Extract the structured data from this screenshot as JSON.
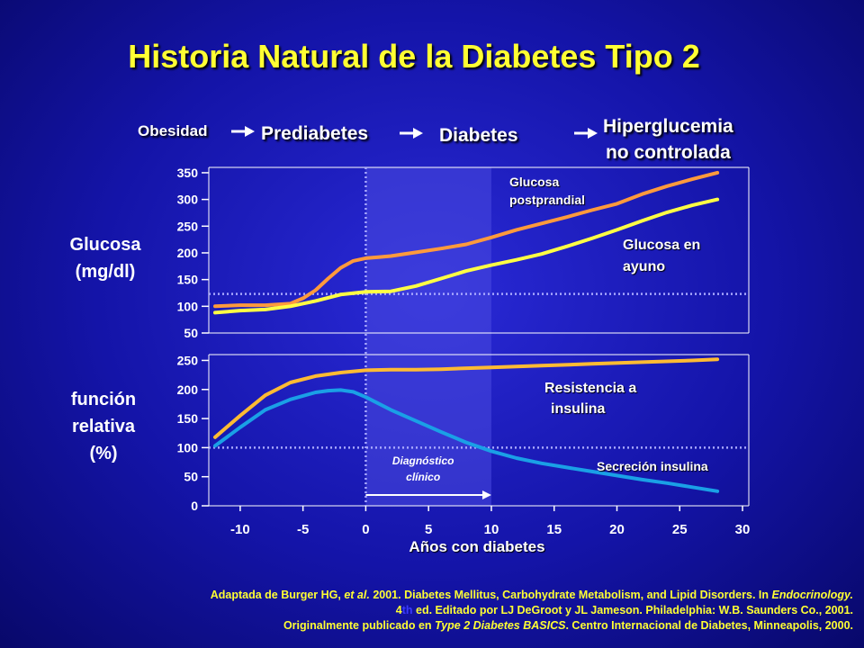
{
  "title": "Historia Natural de la Diabetes Tipo 2",
  "stages": [
    "Obesidad",
    "Prediabetes",
    "Diabetes",
    "Hiperglucemia",
    "no controlada"
  ],
  "colors": {
    "background": "#1414a8",
    "title": "#ffff33",
    "orange_series": "#ff9a3c",
    "yellow_series": "#ffff44",
    "blue_series": "#1aa0e6",
    "reference_line": "#a8a8ff",
    "diagnosis_band": "#4a4ae0"
  },
  "chart_data": [
    {
      "type": "line",
      "ylabel": [
        "Glucosa",
        "(mg/dl)"
      ],
      "xlim": [
        -12.5,
        30.5
      ],
      "ylim": [
        50,
        360
      ],
      "yticks": [
        350,
        300,
        250,
        200,
        150,
        100,
        50
      ],
      "reference_y": 123,
      "series": [
        {
          "name": "Glucosa postprandial",
          "label": [
            "Glucosa",
            "postprandial"
          ],
          "color": "#ff9a3c",
          "x": [
            -12,
            -10,
            -8,
            -6,
            -5,
            -4,
            -3,
            -2,
            -1,
            0,
            1,
            2,
            4,
            6,
            8,
            10,
            12,
            14,
            16,
            18,
            20,
            22,
            24,
            26,
            28
          ],
          "y": [
            100,
            102,
            102,
            105,
            115,
            130,
            152,
            172,
            185,
            190,
            192,
            194,
            201,
            208,
            216,
            229,
            243,
            255,
            267,
            280,
            292,
            310,
            325,
            338,
            350
          ]
        },
        {
          "name": "Glucosa en ayuno",
          "label": [
            "Glucosa en",
            "ayuno"
          ],
          "color": "#ffff44",
          "x": [
            -12,
            -10,
            -8,
            -6,
            -4,
            -2,
            0,
            2,
            4,
            6,
            8,
            10,
            12,
            14,
            16,
            18,
            20,
            22,
            24,
            26,
            28
          ],
          "y": [
            88,
            92,
            94,
            100,
            110,
            122,
            127,
            128,
            138,
            152,
            166,
            177,
            187,
            198,
            212,
            227,
            243,
            260,
            276,
            289,
            300
          ]
        }
      ]
    },
    {
      "type": "line",
      "ylabel": [
        "función",
        "relativa",
        "(%)"
      ],
      "xlabel": "Años con diabetes",
      "xlim": [
        -12.5,
        30.5
      ],
      "ylim": [
        0,
        260
      ],
      "xticks": [
        -10,
        -5,
        0,
        5,
        10,
        15,
        20,
        25,
        30
      ],
      "yticks": [
        250,
        200,
        150,
        100,
        50,
        0
      ],
      "reference_y": 100,
      "series": [
        {
          "name": "Resistencia a insulina",
          "label": [
            "Resistencia a",
            "insulina"
          ],
          "color": "#ffbb33",
          "x": [
            -12,
            -10,
            -8,
            -6,
            -4,
            -2,
            0,
            2,
            4,
            6,
            10,
            14,
            18,
            22,
            26,
            28
          ],
          "y": [
            118,
            155,
            190,
            212,
            223,
            229,
            233,
            234,
            234,
            235,
            238,
            241,
            244,
            247,
            250,
            252
          ]
        },
        {
          "name": "Secreción insulina",
          "label": [
            "Secreción insulina"
          ],
          "color": "#1aa0e6",
          "x": [
            -12,
            -10,
            -8,
            -6,
            -4,
            -3,
            -2,
            -1,
            0,
            2,
            4,
            6,
            8,
            10,
            12,
            14,
            16,
            18,
            20,
            22,
            24,
            26,
            28
          ],
          "y": [
            103,
            135,
            165,
            183,
            195,
            198,
            199,
            196,
            187,
            165,
            146,
            127,
            109,
            94,
            82,
            73,
            66,
            59,
            52,
            45,
            39,
            32,
            25
          ]
        }
      ],
      "annotation": {
        "label": [
          "Diagnóstico",
          "clínico"
        ],
        "x_from": 0,
        "x_to": 10
      }
    }
  ],
  "source": {
    "line1_prefix": "Adaptada de Burger HG, ",
    "line1_em1": "et al.",
    "line1_mid": " 2001. Diabetes Mellitus, Carbohydrate Metabolism, and Lipid Disorders. In ",
    "line1_em2": "Endocrinology.",
    "line2_num": "4",
    "line2_sup": "th",
    "line2_rest": " ed. Editado por LJ DeGroot y JL Jameson. Philadelphia: W.B. Saunders Co., 2001.",
    "line3_prefix": "Originalmente publicado en ",
    "line3_em": "Type 2 Diabetes BASICS",
    "line3_rest": ". Centro Internacional de Diabetes, Minneapolis, 2000."
  }
}
